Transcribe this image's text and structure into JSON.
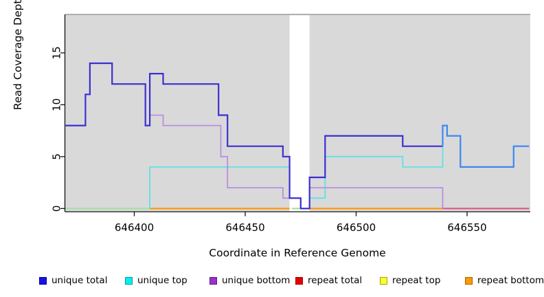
{
  "chart_data": {
    "type": "line",
    "subtype": "step-coverage-plot",
    "title": "",
    "xlabel": "Coordinate in Reference Genome",
    "ylabel": "Read Coverage Depth",
    "xlim": [
      646369,
      646578
    ],
    "ylim": [
      0,
      18.7
    ],
    "x_ticks": [
      "646400",
      "646450",
      "646500",
      "646550"
    ],
    "x_tick_values": [
      646400,
      646450,
      646500,
      646550
    ],
    "y_ticks": [
      "0",
      "5",
      "10",
      "15"
    ],
    "y_tick_values": [
      0,
      5,
      10,
      15
    ],
    "grid": false,
    "plot_background": "#d9d9d9",
    "top_border_color": "#9b9b9b",
    "masked_region": {
      "start": 646470,
      "end": 646479,
      "color": "#ffffff"
    },
    "series": [
      {
        "name": "unique total",
        "color": "#3b2fd2",
        "color_after_split": "#3f86f2",
        "split_at": 646539,
        "points": [
          [
            646369,
            8
          ],
          [
            646378,
            11
          ],
          [
            646380,
            14
          ],
          [
            646390,
            12
          ],
          [
            646405,
            8
          ],
          [
            646407,
            13
          ],
          [
            646413,
            12
          ],
          [
            646438,
            9
          ],
          [
            646442,
            6
          ],
          [
            646467,
            5
          ],
          [
            646470,
            1
          ],
          [
            646475,
            0
          ],
          [
            646479,
            3
          ],
          [
            646486,
            7
          ],
          [
            646521,
            6
          ],
          [
            646539,
            6
          ],
          [
            646539,
            8
          ],
          [
            646541,
            7
          ],
          [
            646547,
            4
          ],
          [
            646571,
            6
          ],
          [
            646578,
            6
          ]
        ]
      },
      {
        "name": "unique top",
        "color": "#5ee2e8",
        "points": [
          [
            646407,
            0
          ],
          [
            646407,
            4
          ],
          [
            646470,
            1
          ],
          [
            646475,
            0
          ],
          [
            646479,
            1
          ],
          [
            646486,
            5
          ],
          [
            646521,
            4
          ],
          [
            646539,
            8
          ],
          [
            646541,
            7
          ],
          [
            646547,
            4
          ],
          [
            646571,
            6
          ],
          [
            646578,
            6
          ]
        ]
      },
      {
        "name": "unique bottom",
        "color": "#b98ee3",
        "points": [
          [
            646407,
            9
          ],
          [
            646413,
            8
          ],
          [
            646439,
            5
          ],
          [
            646442,
            2
          ],
          [
            646467,
            1
          ],
          [
            646475,
            0
          ],
          [
            646479,
            2
          ],
          [
            646539,
            0
          ]
        ]
      }
    ],
    "zero_line_segments": [
      {
        "name": "zero-overlap-green-left",
        "color": "#a2e0a2",
        "from": 646369,
        "to": 646407
      },
      {
        "name": "zero-overlap-green-in-mask",
        "color": "#a2e0a2",
        "from": 646471,
        "to": 646475
      },
      {
        "name": "zero-repeat-bottom-orange-left",
        "color": "#ff9500",
        "from": 646407,
        "to": 646470
      },
      {
        "name": "zero-repeat-bottom-orange-right",
        "color": "#ff9500",
        "from": 646479,
        "to": 646539
      },
      {
        "name": "zero-overlap-pink-right",
        "color": "#e0558c",
        "from": 646539,
        "to": 646578
      }
    ],
    "legend_position": "bottom"
  },
  "legend": {
    "items": [
      {
        "label": "unique total",
        "fill": "#1414e6",
        "border": "#000099"
      },
      {
        "label": "unique top",
        "fill": "#00efef",
        "border": "#009999"
      },
      {
        "label": "unique bottom",
        "fill": "#9932cc",
        "border": "#5c1d80"
      },
      {
        "label": "repeat total",
        "fill": "#e60000",
        "border": "#990000"
      },
      {
        "label": "repeat top",
        "fill": "#ffff33",
        "border": "#a3a300"
      },
      {
        "label": "repeat bottom",
        "fill": "#ff9900",
        "border": "#a66300"
      }
    ]
  }
}
